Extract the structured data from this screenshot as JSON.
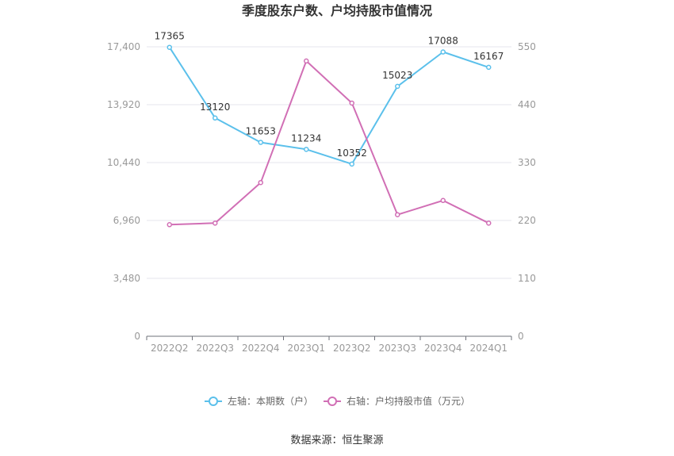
{
  "chart_data": {
    "type": "line",
    "title": "季度股东户数、户均持股市值情况",
    "categories": [
      "2022Q2",
      "2022Q3",
      "2022Q4",
      "2023Q1",
      "2023Q2",
      "2023Q3",
      "2023Q4",
      "2024Q1"
    ],
    "y_left": {
      "range": [
        0,
        17400
      ],
      "ticks": [
        "0",
        "3,480",
        "6,960",
        "10,440",
        "13,920",
        "17,400"
      ],
      "tick_values": [
        0,
        3480,
        6960,
        10440,
        13920,
        17400
      ]
    },
    "y_right": {
      "range": [
        0,
        550
      ],
      "ticks": [
        "0",
        "110",
        "220",
        "330",
        "440",
        "550"
      ],
      "tick_values": [
        0,
        110,
        220,
        330,
        440,
        550
      ]
    },
    "series": [
      {
        "name": "左轴：本期数（户）",
        "axis": "left",
        "color": "#5bc0eb",
        "values": [
          17365,
          13120,
          11653,
          11234,
          10352,
          15023,
          17088,
          16167
        ],
        "labels": [
          "17365",
          "13120",
          "11653",
          "11234",
          "10352",
          "15023",
          "17088",
          "16167"
        ]
      },
      {
        "name": "右轴：户均持股市值（万元）",
        "axis": "right",
        "color": "#d16fb5",
        "values": [
          212,
          215,
          292,
          523,
          443,
          231,
          258,
          215
        ]
      }
    ],
    "grid": true,
    "legend_position": "bottom"
  },
  "footer": {
    "source": "数据来源：恒生聚源"
  }
}
